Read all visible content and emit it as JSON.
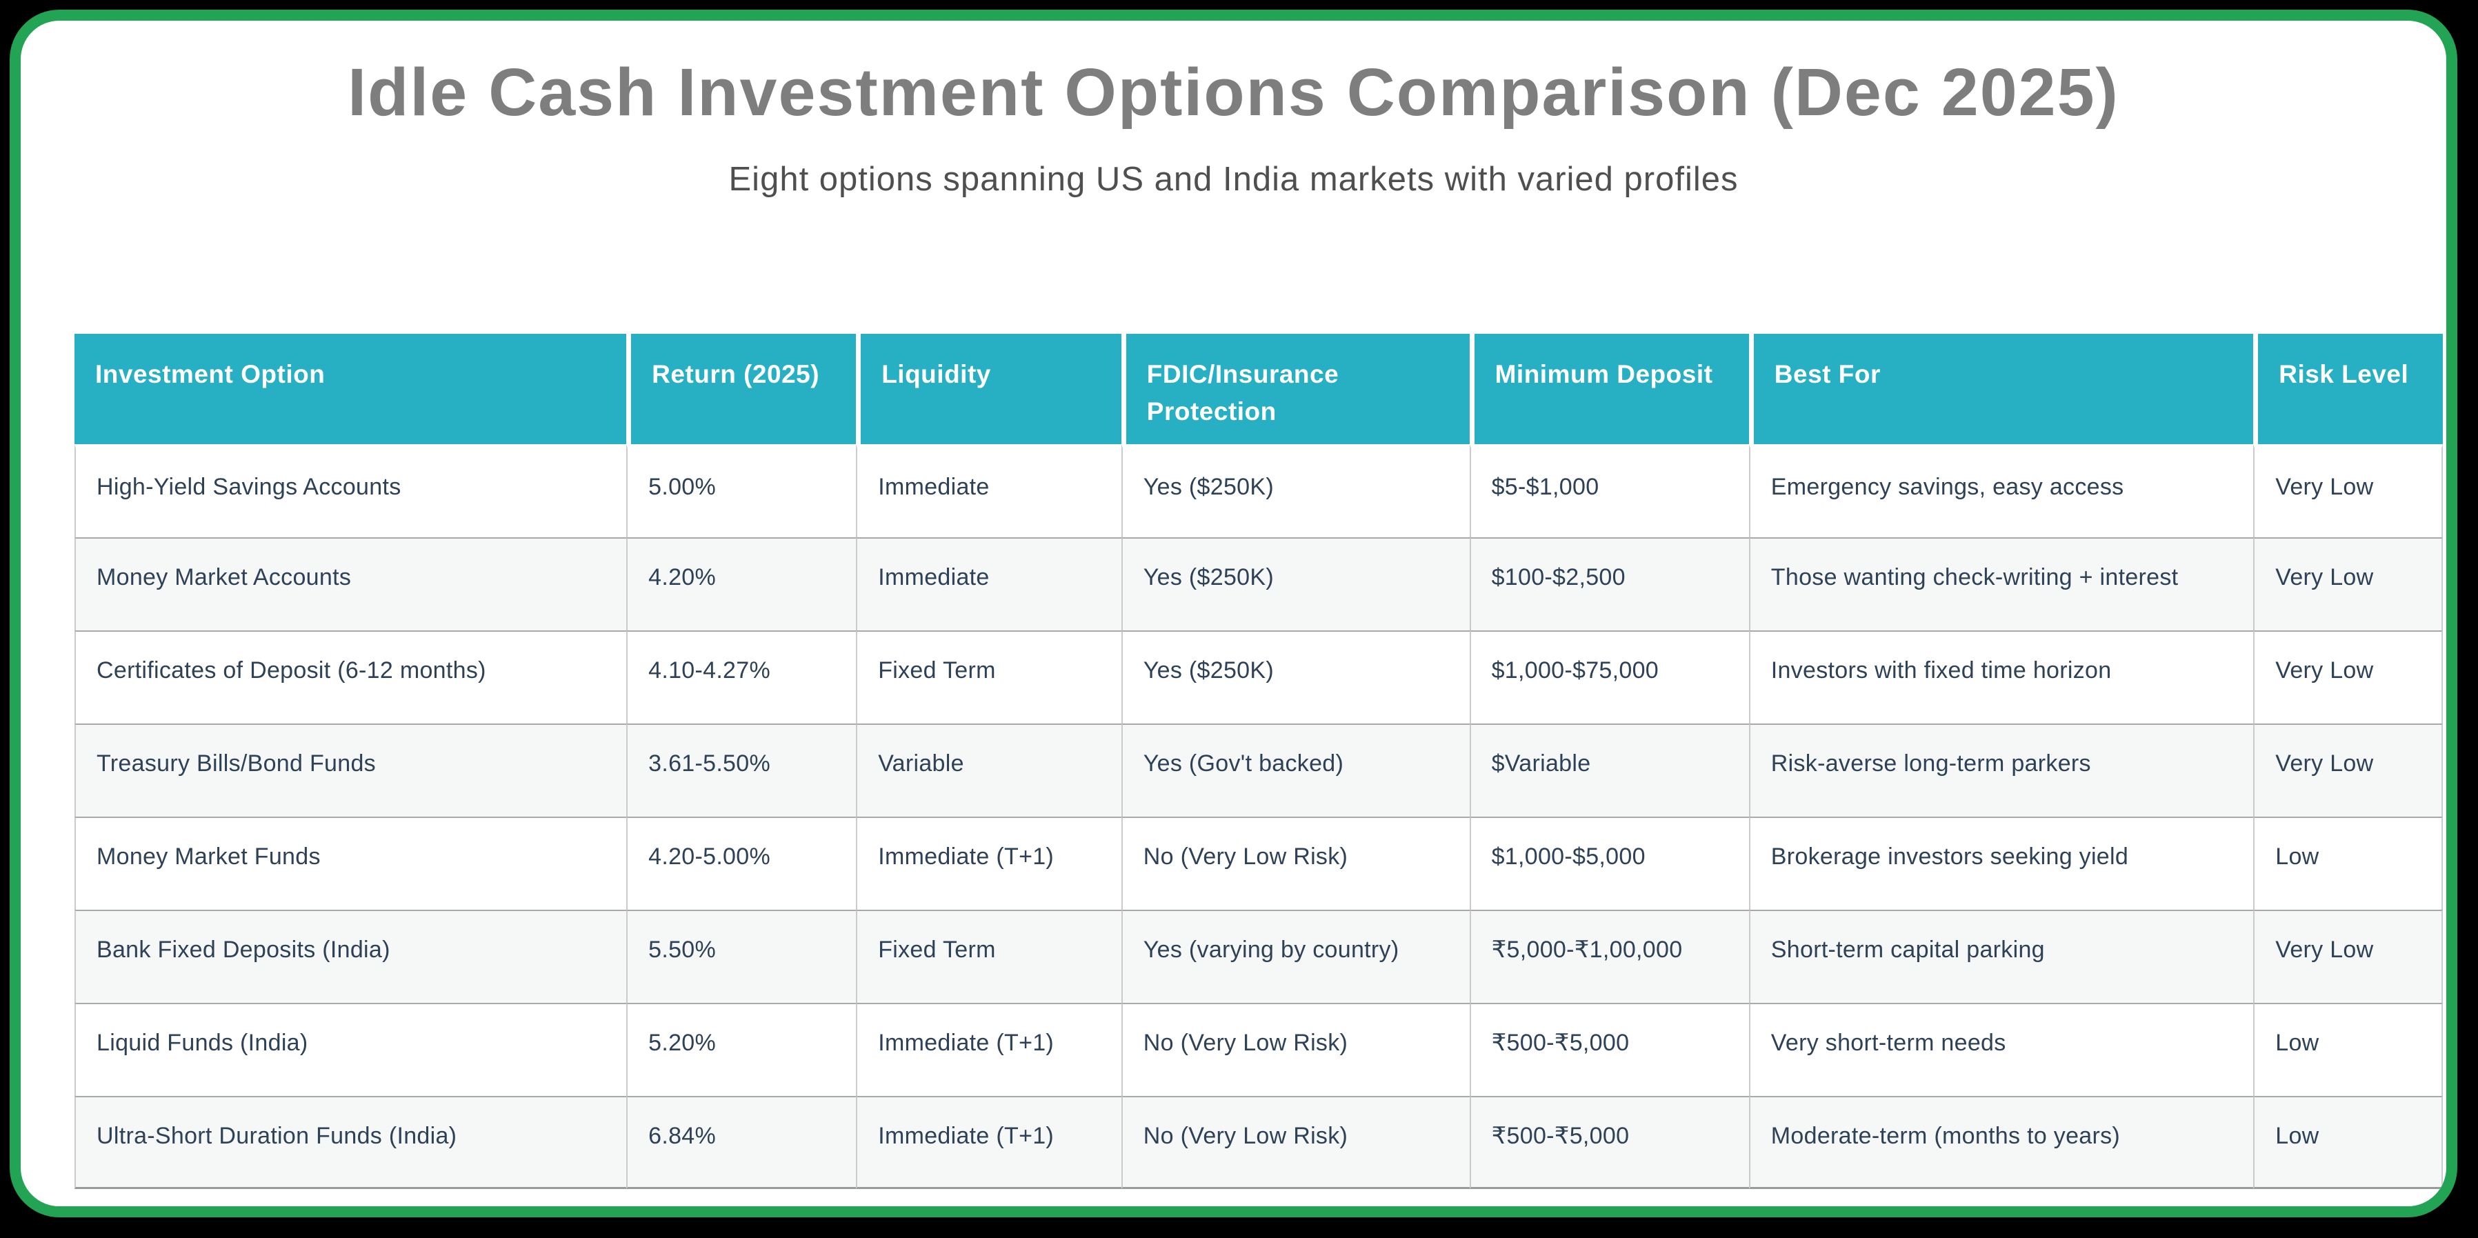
{
  "header": {
    "title": "Idle Cash Investment Options Comparison (Dec 2025)",
    "subtitle": "Eight options spanning US and India markets with varied profiles"
  },
  "colors": {
    "card_border_green": "#23a455",
    "table_header_bg": "#27afc3",
    "table_header_text": "#ffffff",
    "cell_text": "#2e4156",
    "title_text": "#7e7e7e",
    "subtitle_text": "#4f4f4f",
    "row_alt_bg": "#f6f8f8",
    "page_bg": "#000000"
  },
  "chart_data": {
    "type": "table",
    "title": "Idle Cash Investment Options Comparison (Dec 2025)",
    "subtitle": "Eight options spanning US and India markets with varied profiles",
    "columns": [
      "Investment Option",
      "Return (2025)",
      "Liquidity",
      "FDIC/Insurance Protection",
      "Minimum Deposit",
      "Best For",
      "Risk Level"
    ],
    "rows": [
      [
        "High-Yield Savings Accounts",
        "5.00%",
        "Immediate",
        "Yes ($250K)",
        "$5-$1,000",
        "Emergency savings, easy access",
        "Very Low"
      ],
      [
        "Money Market Accounts",
        "4.20%",
        "Immediate",
        "Yes ($250K)",
        "$100-$2,500",
        "Those wanting check-writing + interest",
        "Very Low"
      ],
      [
        "Certificates of Deposit (6-12 months)",
        "4.10-4.27%",
        "Fixed Term",
        "Yes ($250K)",
        "$1,000-$75,000",
        "Investors with fixed time horizon",
        "Very Low"
      ],
      [
        "Treasury Bills/Bond Funds",
        "3.61-5.50%",
        "Variable",
        "Yes (Gov't backed)",
        "$Variable",
        "Risk-averse long-term parkers",
        "Very Low"
      ],
      [
        "Money Market Funds",
        "4.20-5.00%",
        "Immediate (T+1)",
        "No (Very Low Risk)",
        "$1,000-$5,000",
        "Brokerage investors seeking yield",
        "Low"
      ],
      [
        "Bank Fixed Deposits (India)",
        "5.50%",
        "Fixed Term",
        "Yes (varying by country)",
        "₹5,000-₹1,00,000",
        "Short-term capital parking",
        "Very Low"
      ],
      [
        "Liquid Funds (India)",
        "5.20%",
        "Immediate (T+1)",
        "No (Very Low Risk)",
        "₹500-₹5,000",
        "Very short-term needs",
        "Low"
      ],
      [
        "Ultra-Short Duration Funds (India)",
        "6.84%",
        "Immediate (T+1)",
        "No (Very Low Risk)",
        "₹500-₹5,000",
        "Moderate-term (months to years)",
        "Low"
      ]
    ]
  }
}
